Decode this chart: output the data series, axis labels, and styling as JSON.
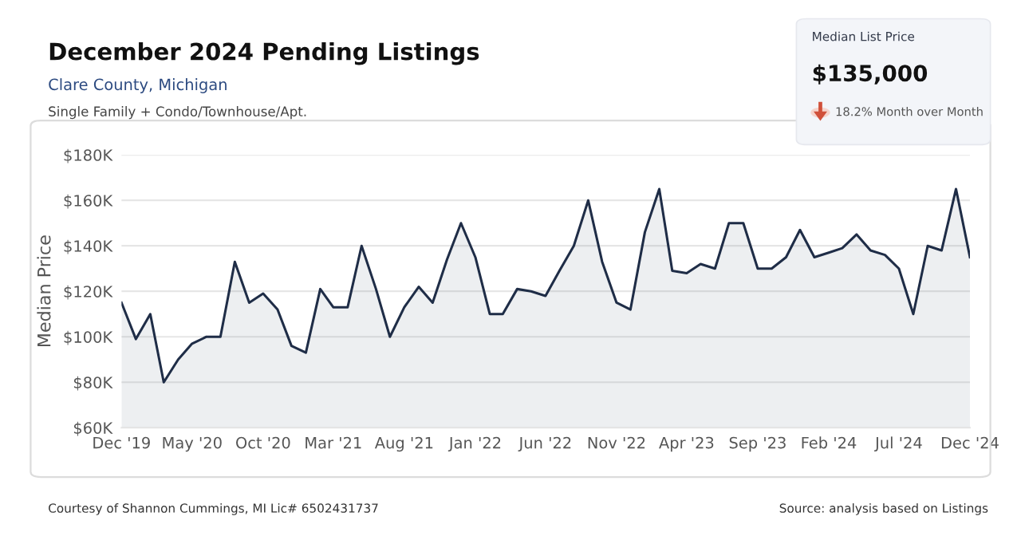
{
  "chart_data": {
    "type": "area",
    "title": "December 2024 Pending Listings",
    "subtitle": "Clare County, Michigan",
    "ylabel": "Median Price",
    "annotations": [
      "Single Family + Condo/Townhouse/Apt.",
      "Median List Price",
      "$135,000",
      "18.2% Month over Month",
      "Courtesy of Shannon Cummings, MI Lic# 6502431737",
      "Source: analysis based on Listings"
    ],
    "x": [
      "2019-12",
      "2020-01",
      "2020-02",
      "2020-03",
      "2020-04",
      "2020-05",
      "2020-06",
      "2020-07",
      "2020-08",
      "2020-09",
      "2020-10",
      "2020-11",
      "2020-12",
      "2021-01",
      "2021-02",
      "2021-03",
      "2021-04",
      "2021-05",
      "2021-06",
      "2021-07",
      "2021-08",
      "2021-09",
      "2021-10",
      "2021-11",
      "2021-12",
      "2022-01",
      "2022-02",
      "2022-03",
      "2022-04",
      "2022-05",
      "2022-06",
      "2022-07",
      "2022-08",
      "2022-09",
      "2022-10",
      "2022-11",
      "2022-12",
      "2023-01",
      "2023-02",
      "2023-03",
      "2023-04",
      "2023-05",
      "2023-06",
      "2023-07",
      "2023-08",
      "2023-09",
      "2023-10",
      "2023-11",
      "2023-12",
      "2024-01",
      "2024-02",
      "2024-03",
      "2024-04",
      "2024-05",
      "2024-06",
      "2024-07",
      "2024-08",
      "2024-09",
      "2024-10",
      "2024-11",
      "2024-12"
    ],
    "series": [
      {
        "color": "#1f2d47",
        "values": [
          115000,
          99000,
          110000,
          80000,
          90000,
          97000,
          100000,
          100000,
          133000,
          115000,
          119000,
          112000,
          96000,
          93000,
          121000,
          113000,
          113000,
          140000,
          121000,
          100000,
          113000,
          122000,
          115000,
          134000,
          150000,
          135000,
          110000,
          110000,
          121000,
          120000,
          118000,
          129000,
          140000,
          160000,
          133000,
          115000,
          112000,
          146000,
          165000,
          129000,
          128000,
          132000,
          130000,
          150000,
          150000,
          130000,
          130000,
          135000,
          147000,
          135000,
          137000,
          139000,
          145000,
          138000,
          136000,
          130000,
          110000,
          140000,
          138000,
          165000,
          135000
        ]
      }
    ],
    "xlim": [
      "2019-12",
      "2024-12"
    ],
    "xticks": [
      {
        "value": "2019-12",
        "label": "Dec '19"
      },
      {
        "value": "2020-05",
        "label": "May '20"
      },
      {
        "value": "2020-10",
        "label": "Oct '20"
      },
      {
        "value": "2021-03",
        "label": "Mar '21"
      },
      {
        "value": "2021-08",
        "label": "Aug '21"
      },
      {
        "value": "2022-01",
        "label": "Jan '22"
      },
      {
        "value": "2022-06",
        "label": "Jun '22"
      },
      {
        "value": "2022-11",
        "label": "Nov '22"
      },
      {
        "value": "2023-04",
        "label": "Apr '23"
      },
      {
        "value": "2023-09",
        "label": "Sep '23"
      },
      {
        "value": "2024-02",
        "label": "Feb '24"
      },
      {
        "value": "2024-07",
        "label": "Jul '24"
      },
      {
        "value": "2024-12",
        "label": "Dec '24"
      }
    ],
    "ylim": [
      60000,
      180000
    ],
    "yticks": [
      {
        "value": 60000,
        "label": "$60K"
      },
      {
        "value": 80000,
        "label": "$80K"
      },
      {
        "value": 100000,
        "label": "$100K"
      },
      {
        "value": 120000,
        "label": "$120K"
      },
      {
        "value": 140000,
        "label": "$140K"
      },
      {
        "value": 160000,
        "label": "$160K"
      },
      {
        "value": 180000,
        "label": "$180K"
      }
    ],
    "grid": "y",
    "legend": false
  }
}
